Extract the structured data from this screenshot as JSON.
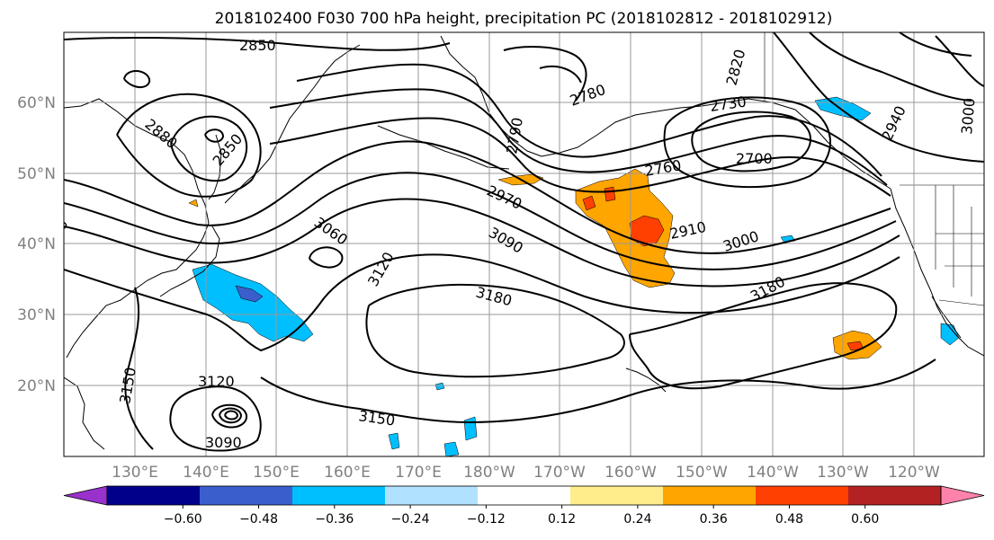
{
  "title": "2018102400 F030 700 hPa height, precipitation PC (2018102812 - 2018102912)",
  "lat_labels": [
    "60°N",
    "50°N",
    "40°N",
    "30°N",
    "20°N"
  ],
  "lon_labels": [
    "130°E",
    "140°E",
    "150°E",
    "160°E",
    "170°E",
    "180°W",
    "170°W",
    "160°W",
    "150°W",
    "140°W",
    "130°W",
    "120°W"
  ],
  "contour_labels": [
    "2850",
    "2880",
    "2850",
    "2820",
    "2780",
    "2790",
    "2730",
    "2940",
    "3000",
    "2700",
    "2760",
    "2970",
    "3060",
    "2910",
    "3090",
    "3120",
    "3000",
    "3180",
    "3180",
    "3150",
    "3120",
    "3150",
    "3090"
  ],
  "colorbar": {
    "colors": [
      "#9932cc",
      "#00008b",
      "#3a5fcd",
      "#00bfff",
      "#b0e2ff",
      "#ffffff",
      "#ffec8b",
      "#ffa500",
      "#ff4000",
      "#b22222",
      "#ff82ab"
    ],
    "ticks": [
      "−0.60",
      "−0.48",
      "−0.36",
      "−0.24",
      "−0.12",
      "0.12",
      "0.24",
      "0.36",
      "0.48",
      "0.60"
    ]
  },
  "colors": {
    "land_outline": "#000000",
    "grid": "#999999",
    "contour": "#000000"
  }
}
